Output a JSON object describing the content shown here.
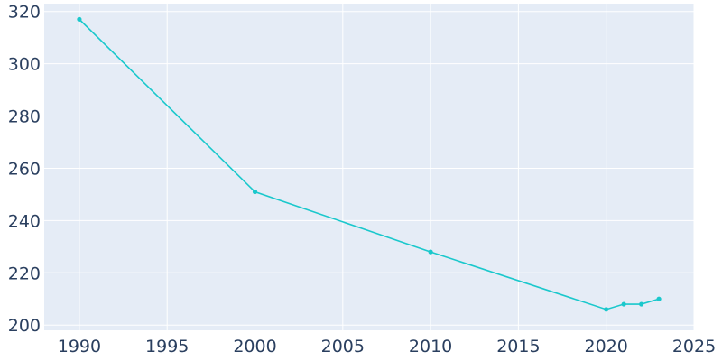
{
  "chart_data": {
    "type": "line",
    "title": "",
    "xlabel": "",
    "ylabel": "",
    "xlim": [
      1988,
      2025
    ],
    "ylim": [
      198,
      323
    ],
    "x_ticks": [
      1990,
      1995,
      2000,
      2005,
      2010,
      2015,
      2020,
      2025
    ],
    "y_ticks": [
      200,
      220,
      240,
      260,
      280,
      300,
      320
    ],
    "grid": true,
    "colors": {
      "plot_background": "#E5ECF6",
      "grid": "#ffffff",
      "line": "#1ac8cc",
      "tick_text": "#2a3f5f"
    },
    "series": [
      {
        "x": [
          1990,
          2000,
          2010,
          2020,
          2021,
          2022,
          2023
        ],
        "y": [
          317,
          251,
          228,
          206,
          208,
          208,
          210
        ]
      }
    ]
  }
}
